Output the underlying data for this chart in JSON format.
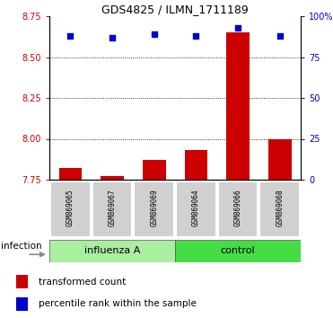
{
  "title": "GDS4825 / ILMN_1711189",
  "samples": [
    "GSM869065",
    "GSM869067",
    "GSM869069",
    "GSM869064",
    "GSM869066",
    "GSM869068"
  ],
  "groups": [
    "influenza A",
    "influenza A",
    "influenza A",
    "control",
    "control",
    "control"
  ],
  "red_values": [
    7.82,
    7.77,
    7.87,
    7.93,
    8.65,
    8.0
  ],
  "blue_values": [
    88,
    87,
    89,
    88,
    93,
    88
  ],
  "ylim_left": [
    7.75,
    8.75
  ],
  "ylim_right": [
    0,
    100
  ],
  "yticks_left": [
    7.75,
    8.0,
    8.25,
    8.5,
    8.75
  ],
  "yticks_right": [
    0,
    25,
    50,
    75,
    100
  ],
  "bar_color": "#CC0000",
  "dot_color": "#0000CC",
  "baseline": 7.75,
  "grid_values": [
    8.0,
    8.25,
    8.5
  ],
  "xlabel_infection": "infection",
  "group_label_influenza": "influenza A",
  "group_label_control": "control",
  "legend_red": "transformed count",
  "legend_blue": "percentile rank within the sample",
  "influenza_color": "#aaeea0",
  "control_color": "#44dd44",
  "sample_box_color": "#d0d0d0",
  "sample_box_edge": "#ffffff"
}
